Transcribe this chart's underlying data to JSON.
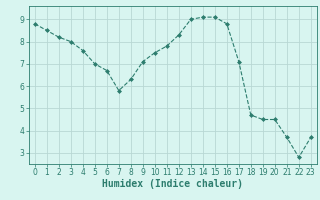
{
  "x": [
    0,
    1,
    2,
    3,
    4,
    5,
    6,
    7,
    8,
    9,
    10,
    11,
    12,
    13,
    14,
    15,
    16,
    17,
    18,
    19,
    20,
    21,
    22,
    23
  ],
  "y": [
    8.8,
    8.5,
    8.2,
    8.0,
    7.6,
    7.0,
    6.7,
    5.8,
    6.3,
    7.1,
    7.5,
    7.8,
    8.3,
    9.0,
    9.1,
    9.1,
    8.8,
    7.1,
    4.7,
    4.5,
    4.5,
    3.7,
    2.8,
    3.7
  ],
  "line_color": "#2d7d6e",
  "marker": "D",
  "marker_size": 2.0,
  "background_color": "#d8f5f0",
  "grid_color": "#b8d8d4",
  "xlabel": "Humidex (Indice chaleur)",
  "xlabel_fontsize": 7,
  "ylim": [
    2.5,
    9.6
  ],
  "xlim": [
    -0.5,
    23.5
  ],
  "yticks": [
    3,
    4,
    5,
    6,
    7,
    8,
    9
  ],
  "xticks": [
    0,
    1,
    2,
    3,
    4,
    5,
    6,
    7,
    8,
    9,
    10,
    11,
    12,
    13,
    14,
    15,
    16,
    17,
    18,
    19,
    20,
    21,
    22,
    23
  ],
  "tick_fontsize": 5.5,
  "axis_color": "#2d7d6e",
  "spine_color": "#2d7d6e",
  "linewidth": 0.8
}
